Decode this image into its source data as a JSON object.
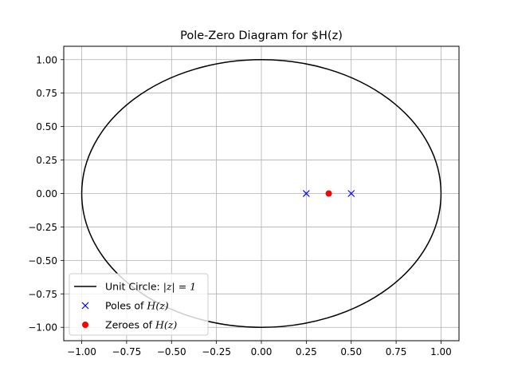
{
  "chart_data": {
    "type": "scatter",
    "title": "Pole-Zero Diagram for $H(z)",
    "xlabel": "",
    "ylabel": "",
    "xlim": [
      -1.1,
      1.1
    ],
    "ylim": [
      -1.1,
      1.1
    ],
    "grid": true,
    "legend_position": "lower-left",
    "x_ticks": [
      "−1.00",
      "−0.75",
      "−0.50",
      "−0.25",
      "0.00",
      "0.25",
      "0.50",
      "0.75",
      "1.00"
    ],
    "y_ticks": [
      "−1.00",
      "−0.75",
      "−0.50",
      "−0.25",
      "0.00",
      "0.25",
      "0.50",
      "0.75",
      "1.00"
    ],
    "x_tick_values": [
      -1.0,
      -0.75,
      -0.5,
      -0.25,
      0.0,
      0.25,
      0.5,
      0.75,
      1.0
    ],
    "y_tick_values": [
      -1.0,
      -0.75,
      -0.5,
      -0.25,
      0.0,
      0.25,
      0.5,
      0.75,
      1.0
    ],
    "series": [
      {
        "name": "Unit Circle: |z| = 1",
        "label_prefix": "Unit Circle: ",
        "label_math": "|z| = 1",
        "kind": "circle",
        "center": [
          0,
          0
        ],
        "radius": 1,
        "color": "#000000"
      },
      {
        "name": "Poles of H(z)",
        "label_prefix": "Poles of ",
        "label_math": "H(z)",
        "kind": "x-marker",
        "points": [
          [
            0.25,
            0.0
          ],
          [
            0.5,
            0.0
          ]
        ],
        "color": "#0000ff"
      },
      {
        "name": "Zeroes of H(z)",
        "label_prefix": "Zeroes of ",
        "label_math": "H(z)",
        "kind": "dot-marker",
        "points": [
          [
            0.375,
            0.0
          ]
        ],
        "color": "#ff0000"
      }
    ]
  }
}
